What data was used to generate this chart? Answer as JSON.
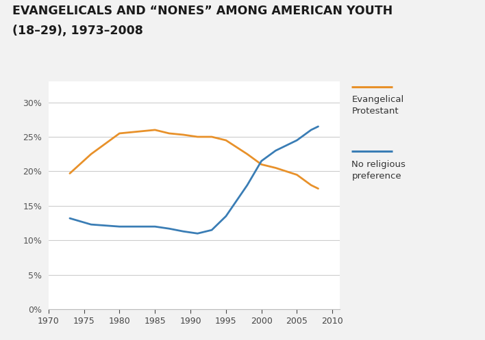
{
  "title_line1": "EVANGELICALS AND “NONES” AMONG AMERICAN YOUTH",
  "title_line2": "(18–29), 1973–2008",
  "evangelical_x": [
    1973,
    1976,
    1980,
    1985,
    1987,
    1989,
    1991,
    1993,
    1995,
    1998,
    2000,
    2002,
    2005,
    2007,
    2008
  ],
  "evangelical_y": [
    19.7,
    22.5,
    25.5,
    26.0,
    25.5,
    25.3,
    25.0,
    25.0,
    24.5,
    22.5,
    21.0,
    20.5,
    19.5,
    18.0,
    17.5
  ],
  "nones_x": [
    1973,
    1976,
    1980,
    1985,
    1987,
    1989,
    1991,
    1993,
    1995,
    1998,
    2000,
    2002,
    2005,
    2007,
    2008
  ],
  "nones_y": [
    13.2,
    12.3,
    12.0,
    12.0,
    11.7,
    11.3,
    11.0,
    11.5,
    13.5,
    18.0,
    21.5,
    23.0,
    24.5,
    26.0,
    26.5
  ],
  "evangelical_color": "#E8912A",
  "nones_color": "#3A7DB5",
  "background_color": "#F2F2F2",
  "plot_bg_color": "#FFFFFF",
  "grid_color": "#CCCCCC",
  "xlim": [
    1970,
    2011
  ],
  "ylim": [
    0,
    33
  ],
  "xticks": [
    1970,
    1975,
    1980,
    1985,
    1990,
    1995,
    2000,
    2005,
    2010
  ],
  "yticks": [
    0,
    5,
    10,
    15,
    20,
    25,
    30
  ],
  "legend_evangelical": "Evangelical\nProtestant",
  "legend_nones": "No religious\npreference",
  "line_width": 2.0,
  "title_fontsize": 12.5,
  "tick_fontsize": 9
}
